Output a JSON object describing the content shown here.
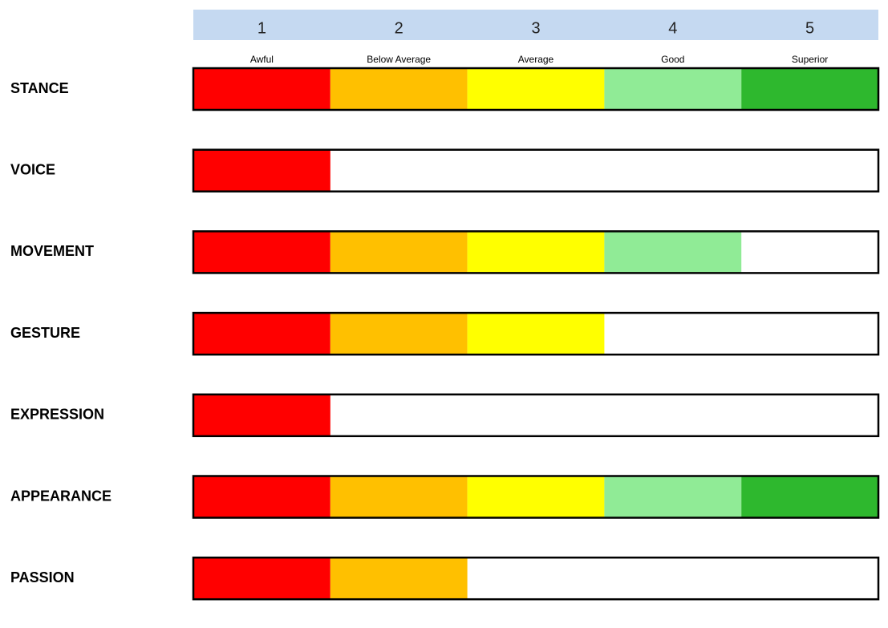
{
  "chart_data": {
    "type": "rating-bar",
    "categories": [
      "STANCE",
      "VOICE",
      "MOVEMENT",
      "GESTURE",
      "EXPRESSION",
      "APPEARANCE",
      "PASSION"
    ],
    "values": [
      5,
      1,
      4,
      3,
      1,
      5,
      2
    ],
    "xlim": [
      0,
      5
    ],
    "xticks": [
      1,
      2,
      3,
      4,
      5
    ],
    "xtick_labels": [
      "Awful",
      "Below Average",
      "Average",
      "Good",
      "Superior"
    ],
    "colors": [
      "#ff0000",
      "#ffc000",
      "#ffff00",
      "#90eb96",
      "#2eb82e"
    ]
  }
}
